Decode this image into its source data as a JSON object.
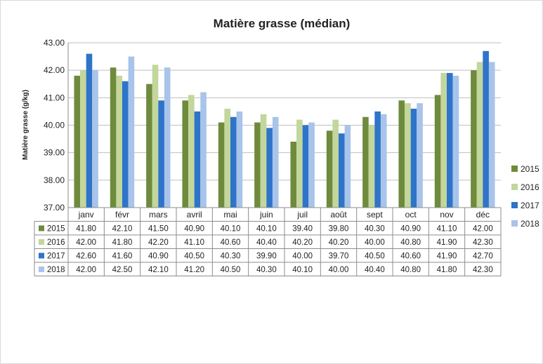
{
  "chart_data": {
    "type": "bar",
    "title": "Matière grasse  (médian)",
    "ylabel": "Matière grasse (g/kg)",
    "xlabel": "",
    "ylim": [
      37.0,
      43.0
    ],
    "yticks": [
      "37.00",
      "38.00",
      "39.00",
      "40.00",
      "41.00",
      "42.00",
      "43.00"
    ],
    "grid": true,
    "legend_position": "right",
    "categories": [
      "janv",
      "févr",
      "mars",
      "avril",
      "mai",
      "juin",
      "juil",
      "août",
      "sept",
      "oct",
      "nov",
      "déc"
    ],
    "series": [
      {
        "name": "2015",
        "color": "#6e8b3d",
        "values": [
          41.8,
          42.1,
          41.5,
          40.9,
          40.1,
          40.1,
          39.4,
          39.8,
          40.3,
          40.9,
          41.1,
          42.0
        ],
        "labels": [
          "41.80",
          "42.10",
          "41.50",
          "40.90",
          "40.10",
          "40.10",
          "39.40",
          "39.80",
          "40.30",
          "40.90",
          "41.10",
          "42.00"
        ]
      },
      {
        "name": "2016",
        "color": "#c3d69b",
        "values": [
          42.0,
          41.8,
          42.2,
          41.1,
          40.6,
          40.4,
          40.2,
          40.2,
          40.0,
          40.8,
          41.9,
          42.3
        ],
        "labels": [
          "42.00",
          "41.80",
          "42.20",
          "41.10",
          "40.60",
          "40.40",
          "40.20",
          "40.20",
          "40.00",
          "40.80",
          "41.90",
          "42.30"
        ]
      },
      {
        "name": "2017",
        "color": "#2e74c9",
        "values": [
          42.6,
          41.6,
          40.9,
          40.5,
          40.3,
          39.9,
          40.0,
          39.7,
          40.5,
          40.6,
          41.9,
          42.7
        ],
        "labels": [
          "42.60",
          "41.60",
          "40.90",
          "40.50",
          "40.30",
          "39.90",
          "40.00",
          "39.70",
          "40.50",
          "40.60",
          "41.90",
          "42.70"
        ]
      },
      {
        "name": "2018",
        "color": "#a9c4ea",
        "values": [
          42.0,
          42.5,
          42.1,
          41.2,
          40.5,
          40.3,
          40.1,
          40.0,
          40.4,
          40.8,
          41.8,
          42.3
        ],
        "labels": [
          "42.00",
          "42.50",
          "42.10",
          "41.20",
          "40.50",
          "40.30",
          "40.10",
          "40.00",
          "40.40",
          "40.80",
          "41.80",
          "42.30"
        ]
      }
    ]
  }
}
